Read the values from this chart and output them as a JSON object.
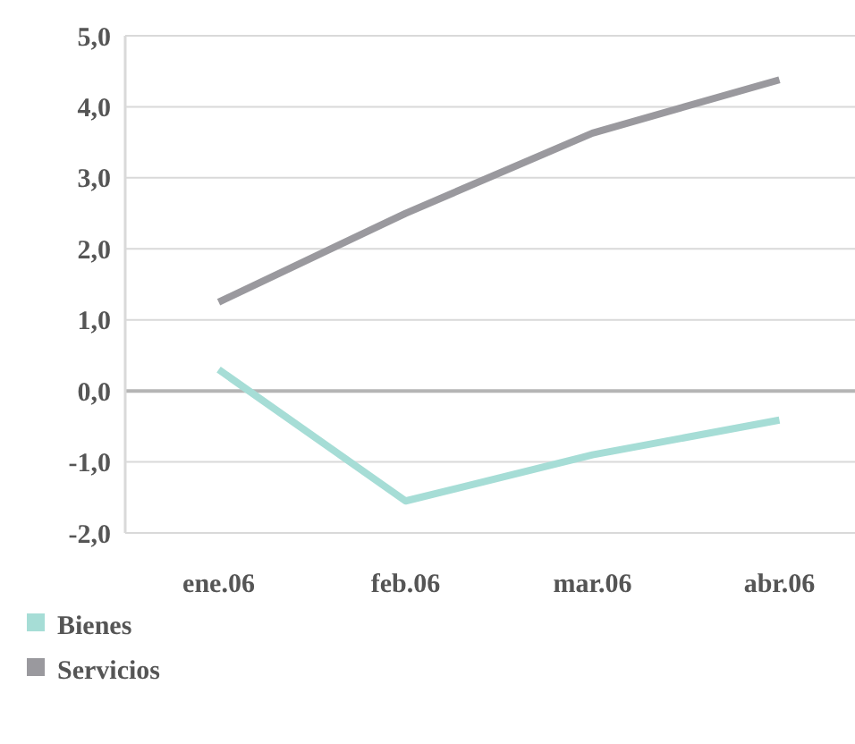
{
  "chart_data": {
    "type": "line",
    "categories": [
      "ene.06",
      "feb.06",
      "mar.06",
      "abr.06"
    ],
    "series": [
      {
        "name": "Bienes",
        "color": "#a6ddd6",
        "values": [
          0.3,
          -1.55,
          -0.9,
          -0.41
        ]
      },
      {
        "name": "Servicios",
        "color": "#9a999e",
        "values": [
          1.25,
          2.5,
          3.63,
          4.38
        ]
      }
    ],
    "ylim": [
      -2,
      5
    ],
    "yticks": [
      {
        "value": -2,
        "label": "-2,0"
      },
      {
        "value": -1,
        "label": "-1,0"
      },
      {
        "value": 0,
        "label": "0,0"
      },
      {
        "value": 1,
        "label": "1,0"
      },
      {
        "value": 2,
        "label": "2,0"
      },
      {
        "value": 3,
        "label": "3,0"
      },
      {
        "value": 4,
        "label": "4,0"
      },
      {
        "value": 5,
        "label": "5,0"
      }
    ],
    "grid": "y",
    "legend": "bottom left",
    "marker": "none",
    "line_style": "solid"
  }
}
